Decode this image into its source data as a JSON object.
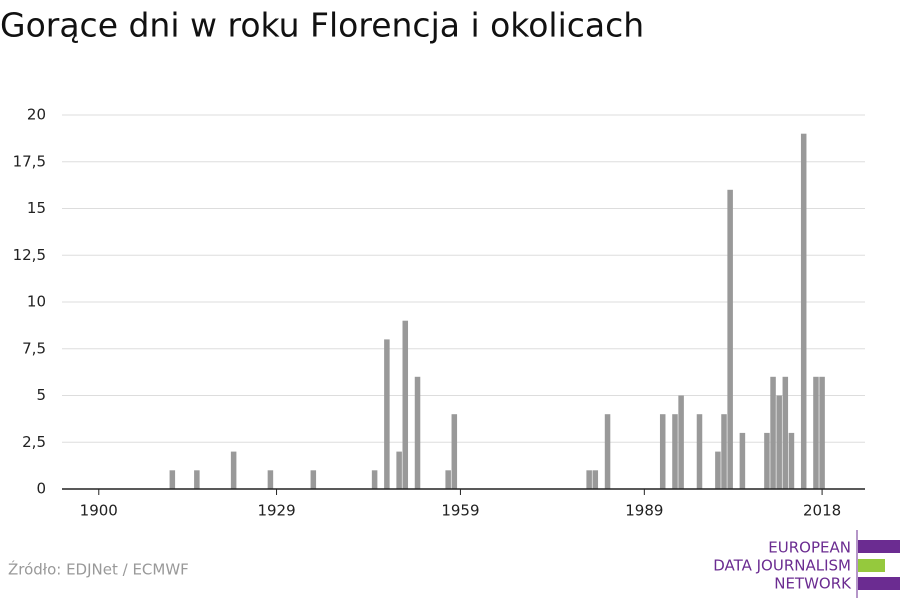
{
  "chart_data": {
    "type": "bar",
    "title": "Gorące dni w roku Florencja i okolicach",
    "x": [
      1912,
      1916,
      1922,
      1928,
      1935,
      1945,
      1947,
      1949,
      1950,
      1952,
      1957,
      1958,
      1980,
      1981,
      1983,
      1992,
      1994,
      1995,
      1998,
      2001,
      2002,
      2003,
      2005,
      2009,
      2010,
      2011,
      2012,
      2013,
      2015,
      2017,
      2018
    ],
    "values": [
      1,
      1,
      2,
      1,
      1,
      1,
      8,
      2,
      9,
      6,
      1,
      4,
      1,
      1,
      4,
      4,
      4,
      5,
      4,
      2,
      4,
      16,
      3,
      3,
      6,
      5,
      6,
      3,
      19,
      6,
      6
    ],
    "color": "#999999",
    "xlim": [
      1894,
      2025
    ],
    "xticks": [
      1900,
      1929,
      1959,
      1989,
      2018
    ],
    "ylim": [
      0,
      20
    ],
    "yticks": [
      0,
      {
        "value": 2.5,
        "label": "2,5"
      },
      5,
      {
        "value": 7.5,
        "label": "7,5"
      },
      10,
      {
        "value": 12.5,
        "label": "12,5"
      },
      15,
      {
        "value": 17.5,
        "label": "17,5"
      },
      20
    ],
    "grid": true
  },
  "source": "Źródło: EDJNet / ECMWF",
  "logo": {
    "lines": [
      "EUROPEAN",
      "DATA JOURNALISM",
      "NETWORK"
    ]
  }
}
